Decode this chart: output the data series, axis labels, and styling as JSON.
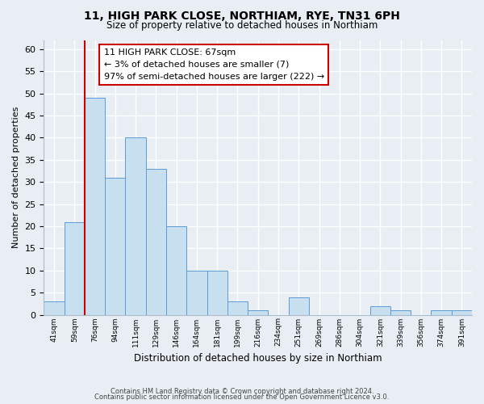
{
  "title": "11, HIGH PARK CLOSE, NORTHIAM, RYE, TN31 6PH",
  "subtitle": "Size of property relative to detached houses in Northiam",
  "xlabel": "Distribution of detached houses by size in Northiam",
  "ylabel": "Number of detached properties",
  "bin_labels": [
    "41sqm",
    "59sqm",
    "76sqm",
    "94sqm",
    "111sqm",
    "129sqm",
    "146sqm",
    "164sqm",
    "181sqm",
    "199sqm",
    "216sqm",
    "234sqm",
    "251sqm",
    "269sqm",
    "286sqm",
    "304sqm",
    "321sqm",
    "339sqm",
    "356sqm",
    "374sqm",
    "391sqm"
  ],
  "bar_heights": [
    3,
    21,
    49,
    31,
    40,
    33,
    20,
    10,
    10,
    3,
    1,
    0,
    4,
    0,
    0,
    0,
    2,
    1,
    0,
    1,
    1
  ],
  "bar_color": "#c8dff0",
  "bar_edge_color": "#5b9bd5",
  "subject_line_color": "#cc0000",
  "ylim": [
    0,
    62
  ],
  "yticks": [
    0,
    5,
    10,
    15,
    20,
    25,
    30,
    35,
    40,
    45,
    50,
    55,
    60
  ],
  "annotation_title": "11 HIGH PARK CLOSE: 67sqm",
  "annotation_line1": "← 3% of detached houses are smaller (7)",
  "annotation_line2": "97% of semi-detached houses are larger (222) →",
  "annotation_box_color": "#ffffff",
  "annotation_box_edge": "#cc0000",
  "footer1": "Contains HM Land Registry data © Crown copyright and database right 2024.",
  "footer2": "Contains public sector information licensed under the Open Government Licence v3.0.",
  "background_color": "#e8eef4",
  "grid_color": "#ffffff"
}
